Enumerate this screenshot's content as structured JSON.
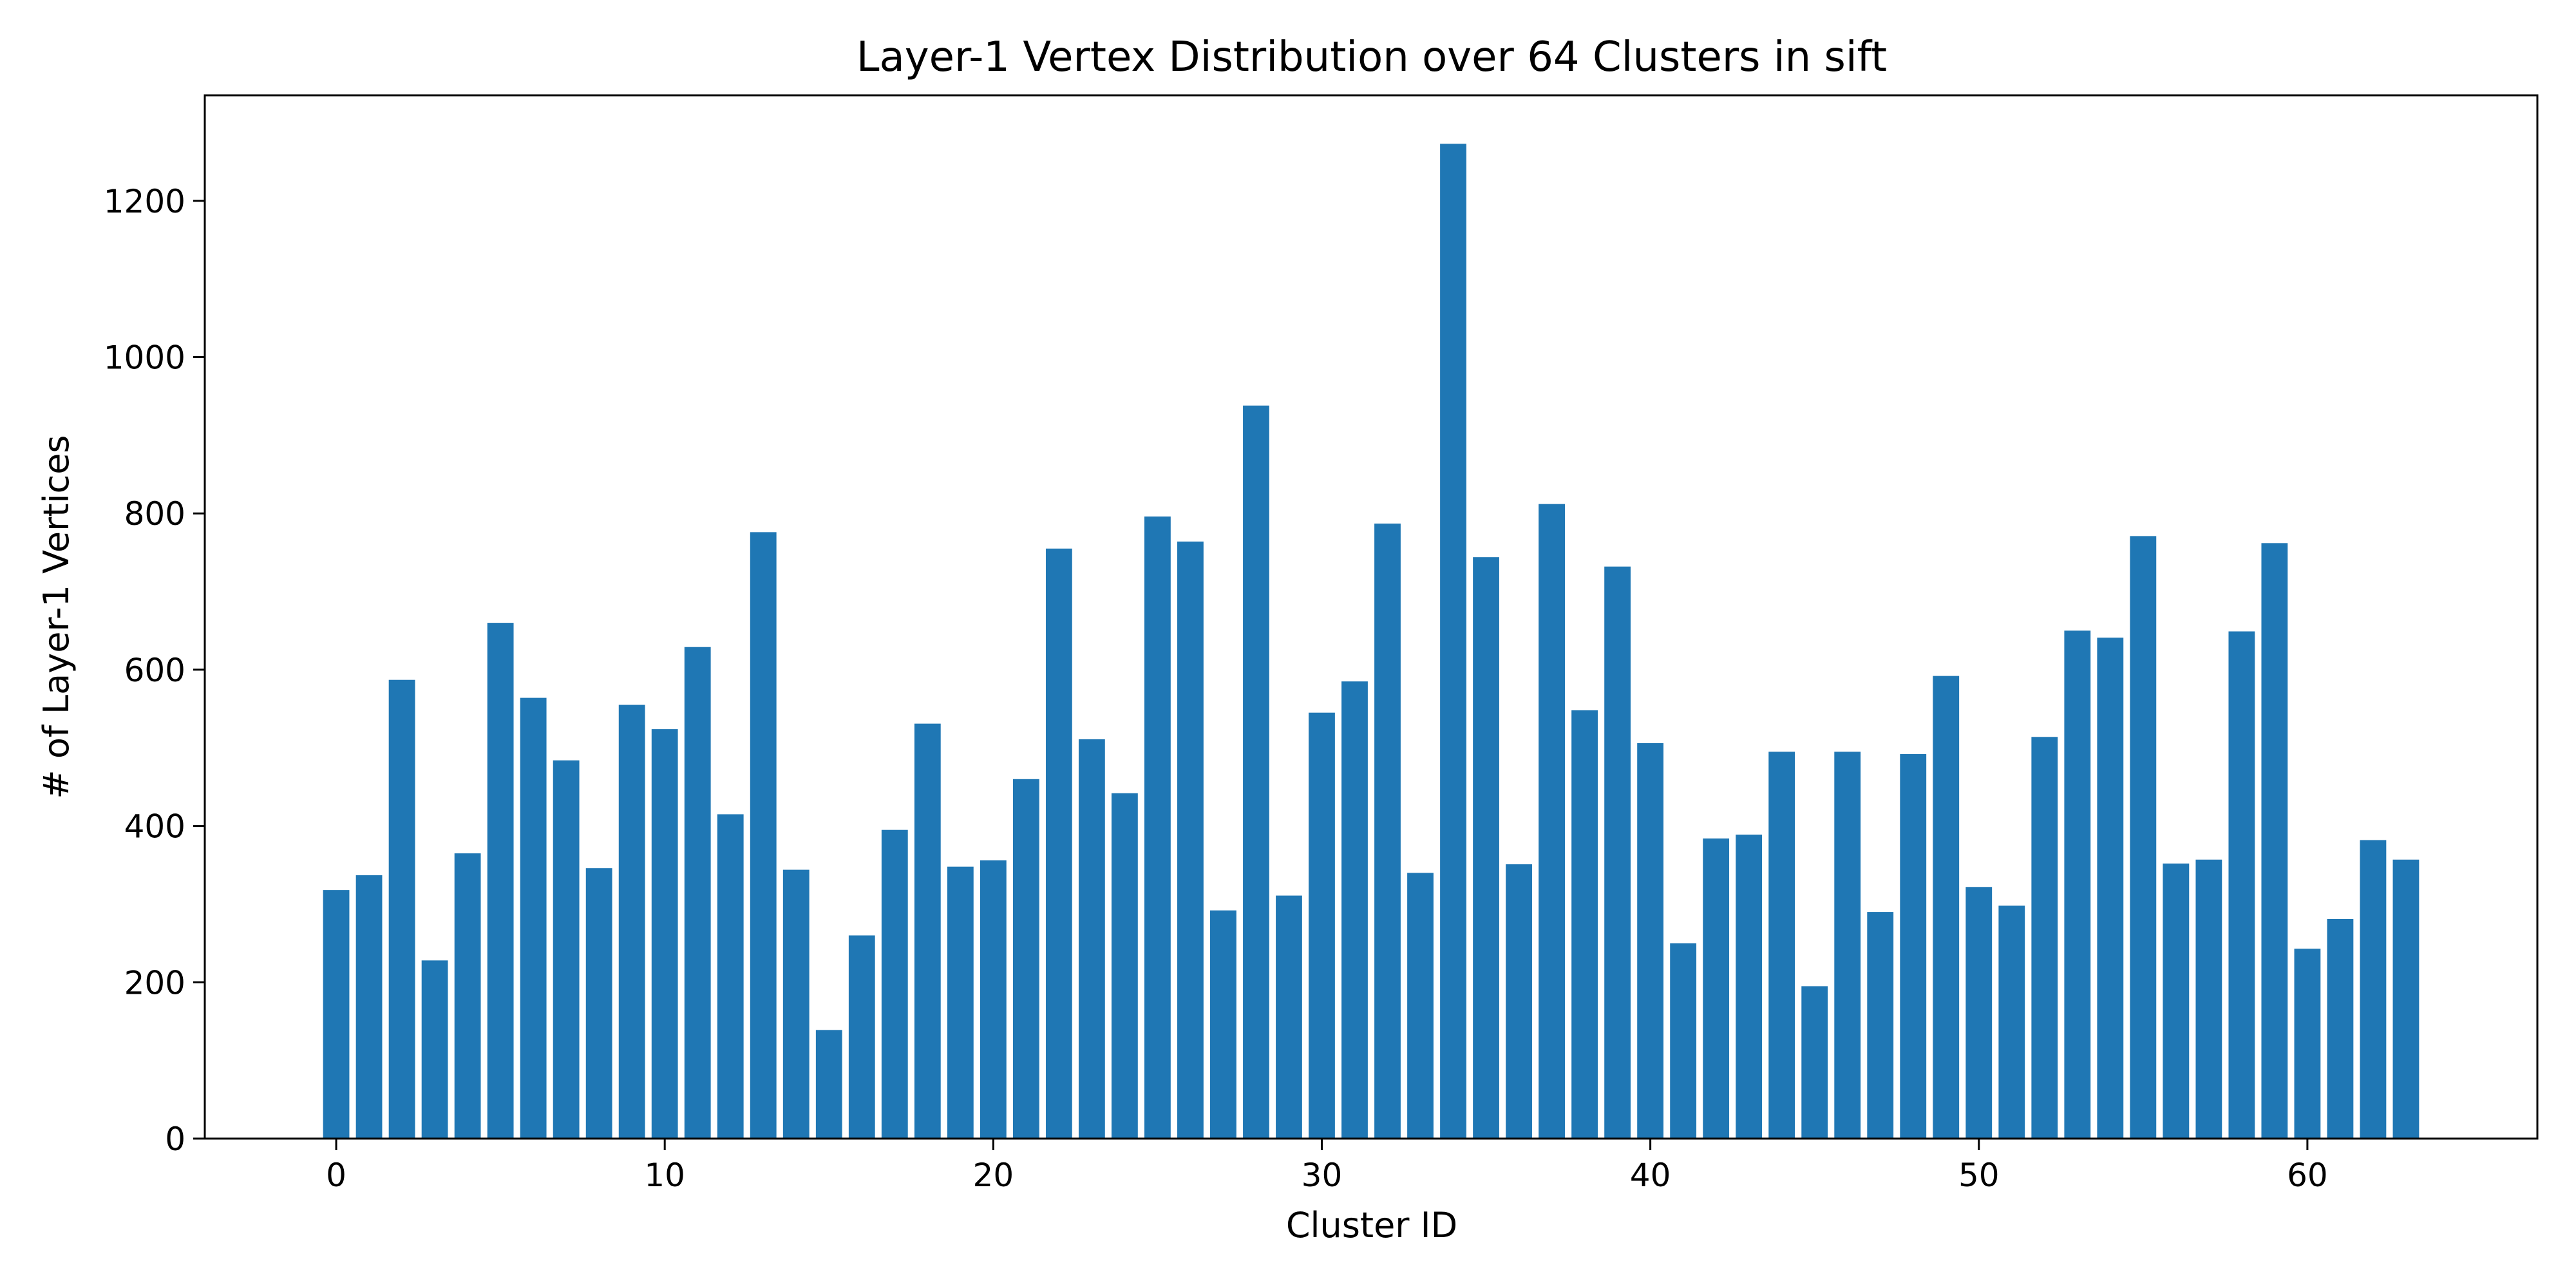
{
  "chart_data": {
    "type": "bar",
    "title": "Layer-1 Vertex Distribution over 64 Clusters in sift",
    "xlabel": "Cluster ID",
    "ylabel": "# of Layer-1 Vertices",
    "xlim": [
      -4,
      67
    ],
    "ylim": [
      0,
      1335
    ],
    "xticks": [
      0,
      10,
      20,
      30,
      40,
      50,
      60
    ],
    "yticks": [
      0,
      200,
      400,
      600,
      800,
      1000,
      1200
    ],
    "grid": false,
    "bar_color": "#1f77b4",
    "categories": [
      0,
      1,
      2,
      3,
      4,
      5,
      6,
      7,
      8,
      9,
      10,
      11,
      12,
      13,
      14,
      15,
      16,
      17,
      18,
      19,
      20,
      21,
      22,
      23,
      24,
      25,
      26,
      27,
      28,
      29,
      30,
      31,
      32,
      33,
      34,
      35,
      36,
      37,
      38,
      39,
      40,
      41,
      42,
      43,
      44,
      45,
      46,
      47,
      48,
      49,
      50,
      51,
      52,
      53,
      54,
      55,
      56,
      57,
      58,
      59,
      60,
      61,
      62,
      63
    ],
    "values": [
      318,
      337,
      587,
      228,
      365,
      660,
      564,
      484,
      346,
      555,
      524,
      629,
      415,
      776,
      344,
      139,
      260,
      395,
      531,
      348,
      356,
      460,
      755,
      511,
      442,
      796,
      764,
      292,
      938,
      311,
      545,
      585,
      787,
      340,
      1273,
      744,
      351,
      812,
      548,
      732,
      506,
      250,
      384,
      389,
      495,
      195,
      495,
      290,
      492,
      592,
      322,
      298,
      514,
      650,
      641,
      771,
      352,
      357,
      649,
      762,
      243,
      281,
      382,
      357
    ]
  }
}
